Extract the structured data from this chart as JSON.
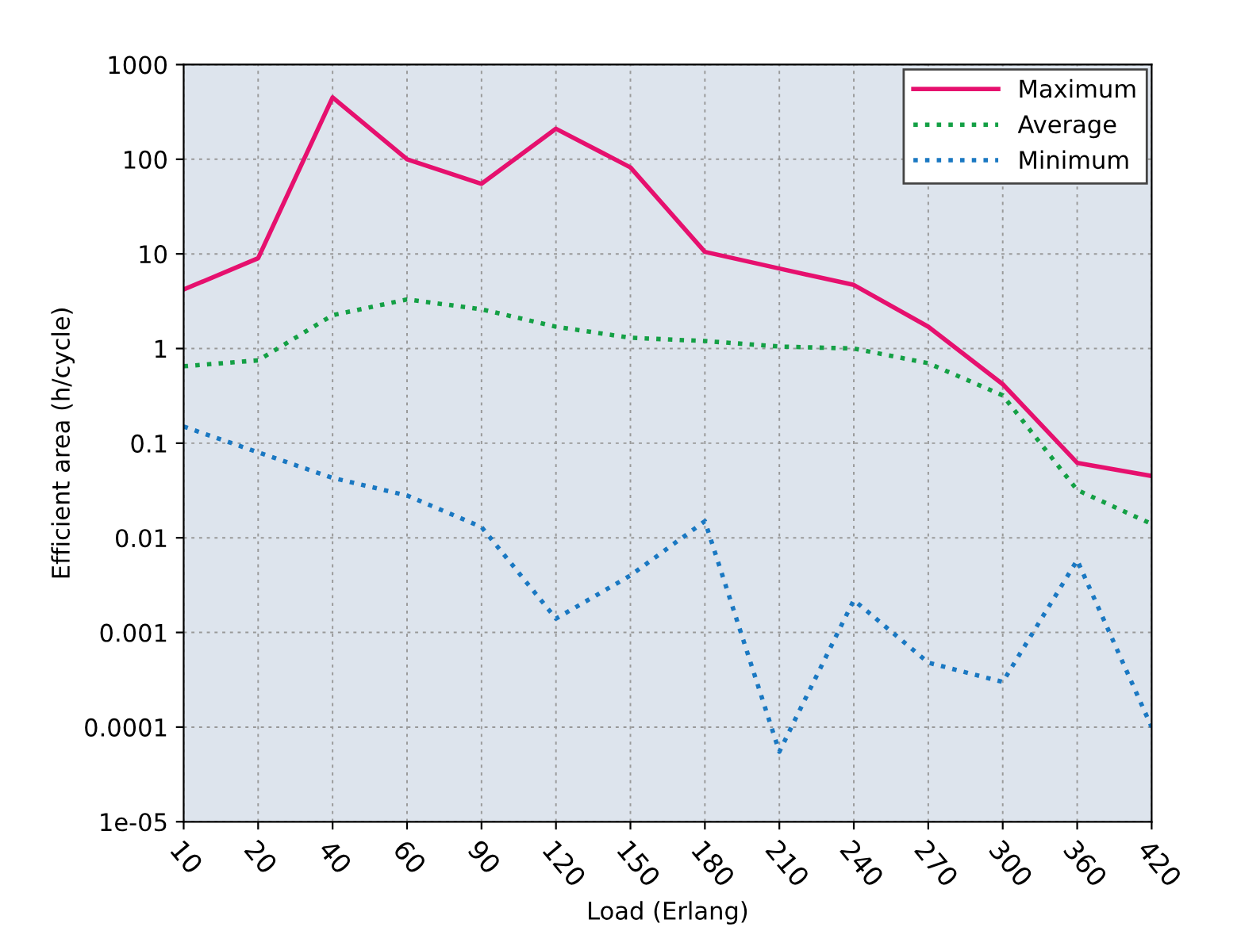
{
  "chart_data": {
    "type": "line",
    "xlabel": "Load (Erlang)",
    "ylabel": "Efficient area (h/cycle)",
    "categories": [
      "10",
      "20",
      "40",
      "60",
      "90",
      "120",
      "150",
      "180",
      "210",
      "240",
      "270",
      "300",
      "360",
      "420"
    ],
    "log": "y",
    "ylim": [
      1e-05,
      1000
    ],
    "yticks": [
      {
        "value": 1e-05,
        "label": "1e-05"
      },
      0.0001,
      0.001,
      0.01,
      0.1,
      1,
      10,
      100,
      1000
    ],
    "grid": true,
    "legend": "top right",
    "series": [
      {
        "name": "Maximum",
        "color": "#e6106e",
        "line_style": "solid",
        "values": [
          4.2,
          9,
          450,
          100,
          55,
          210,
          82,
          10.5,
          7,
          4.7,
          1.7,
          0.42,
          0.062,
          0.045
        ]
      },
      {
        "name": "Average",
        "color": "#14a045",
        "line_style": "dotted",
        "values": [
          0.65,
          0.75,
          2.25,
          3.3,
          2.6,
          1.7,
          1.3,
          1.2,
          1.05,
          1.0,
          0.7,
          0.32,
          0.032,
          0.014
        ]
      },
      {
        "name": "Minimum",
        "color": "#1a78c2",
        "line_style": "dotted",
        "values": [
          0.15,
          0.08,
          0.043,
          0.028,
          0.013,
          0.0014,
          0.004,
          0.015,
          5.5e-05,
          0.0022,
          0.00048,
          0.0003,
          0.0058,
          0.0001
        ]
      }
    ]
  }
}
